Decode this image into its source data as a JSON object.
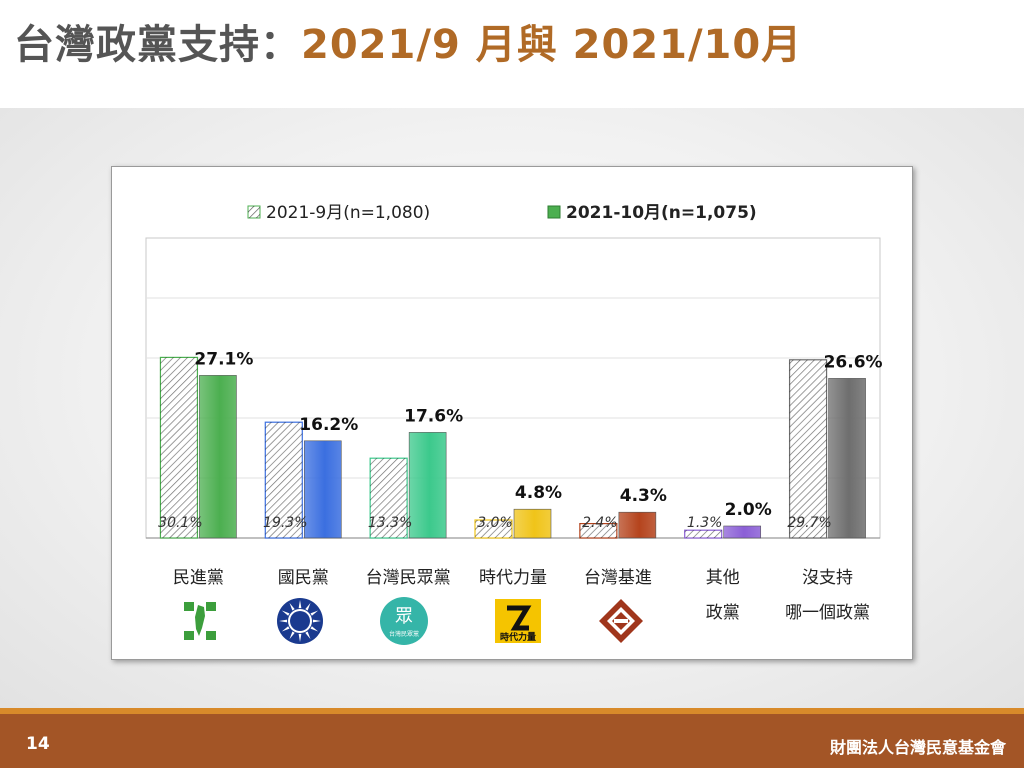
{
  "slide": {
    "title_prefix": "台灣政黨支持：",
    "title_accent": "2021/9 月與 2021/10月",
    "page_number": "14",
    "organization": "財團法人台灣民意基金會"
  },
  "chart_data": {
    "type": "bar",
    "title": "",
    "xlabel": "",
    "ylabel": "",
    "ylim": [
      0,
      50
    ],
    "grid": true,
    "legend_placement": "top",
    "categories": [
      [
        "民進黨"
      ],
      [
        "國民黨"
      ],
      [
        "台灣民眾黨"
      ],
      [
        "時代力量"
      ],
      [
        "台灣基進"
      ],
      [
        "其他",
        "政黨"
      ],
      [
        "沒支持",
        "哪一個政黨"
      ]
    ],
    "series": [
      {
        "name": "2021-9月(n=1,080)",
        "values": [
          30.1,
          19.3,
          13.3,
          3.0,
          2.4,
          1.3,
          29.7
        ],
        "labels": [
          "30.1%",
          "19.3%",
          "13.3%",
          "3.0%",
          "2.4%",
          "1.3%",
          "29.7%"
        ],
        "style": "hatched"
      },
      {
        "name": "2021-10月(n=1,075)",
        "values": [
          27.1,
          16.2,
          17.6,
          4.8,
          4.3,
          2.0,
          26.6
        ],
        "labels": [
          "27.1%",
          "16.2%",
          "17.6%",
          "4.8%",
          "4.3%",
          "2.0%",
          "26.6%"
        ],
        "style": "solid"
      }
    ],
    "colors": [
      "#4caf50",
      "#3b6fe0",
      "#3cc98c",
      "#f0c419",
      "#b5441d",
      "#8b5fd6",
      "#6e6e6e"
    ]
  },
  "logos": [
    {
      "icon": "dpp-logo-icon",
      "text": ""
    },
    {
      "icon": "kmt-logo-icon",
      "text": ""
    },
    {
      "icon": "tpp-logo-icon",
      "text": "眾"
    },
    {
      "icon": "npp-logo-icon",
      "text": "時代力量"
    },
    {
      "icon": "tsp-logo-icon",
      "text": ""
    }
  ]
}
